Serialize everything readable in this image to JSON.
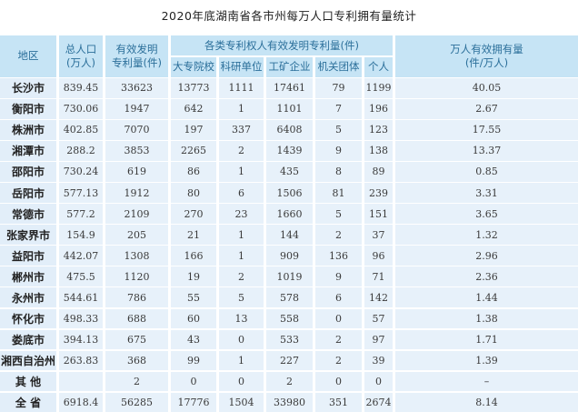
{
  "title": "2020年底湖南省各市州每万人口专利拥有量统计",
  "headers": {
    "region": "地区",
    "population": [
      "总人口",
      "(万人)"
    ],
    "valid_patents": [
      "有效发明",
      "专利量(件)"
    ],
    "group": "各类专利权人有效发明专利量(件)",
    "sub": [
      "大专院校",
      "科研单位",
      "工矿企业",
      "机关团体",
      "个人"
    ],
    "per_10k": [
      "万人有效拥有量",
      "(件/万人)"
    ]
  },
  "rows": [
    [
      "长沙市",
      "839.45",
      "33623",
      "13773",
      "1111",
      "17461",
      "79",
      "1199",
      "40.05"
    ],
    [
      "衡阳市",
      "730.06",
      "1947",
      "642",
      "1",
      "1101",
      "7",
      "196",
      "2.67"
    ],
    [
      "株洲市",
      "402.85",
      "7070",
      "197",
      "337",
      "6408",
      "5",
      "123",
      "17.55"
    ],
    [
      "湘潭市",
      "288.2",
      "3853",
      "2265",
      "2",
      "1439",
      "9",
      "138",
      "13.37"
    ],
    [
      "邵阳市",
      "730.24",
      "619",
      "86",
      "1",
      "435",
      "8",
      "89",
      "0.85"
    ],
    [
      "岳阳市",
      "577.13",
      "1912",
      "80",
      "6",
      "1506",
      "81",
      "239",
      "3.31"
    ],
    [
      "常德市",
      "577.2",
      "2109",
      "270",
      "23",
      "1660",
      "5",
      "151",
      "3.65"
    ],
    [
      "张家界市",
      "154.9",
      "205",
      "21",
      "1",
      "144",
      "2",
      "37",
      "1.32"
    ],
    [
      "益阳市",
      "442.07",
      "1308",
      "166",
      "1",
      "909",
      "136",
      "96",
      "2.96"
    ],
    [
      "郴州市",
      "475.5",
      "1120",
      "19",
      "2",
      "1019",
      "9",
      "71",
      "2.36"
    ],
    [
      "永州市",
      "544.61",
      "786",
      "55",
      "5",
      "578",
      "6",
      "142",
      "1.44"
    ],
    [
      "怀化市",
      "498.33",
      "688",
      "60",
      "13",
      "558",
      "0",
      "57",
      "1.38"
    ],
    [
      "娄底市",
      "394.13",
      "675",
      "43",
      "0",
      "533",
      "2",
      "97",
      "1.71"
    ],
    [
      "湘西自治州",
      "263.83",
      "368",
      "99",
      "1",
      "227",
      "2",
      "39",
      "1.39"
    ],
    [
      "其 他",
      "",
      "2",
      "0",
      "0",
      "2",
      "0",
      "0",
      "–"
    ],
    [
      "全 省",
      "6918.4",
      "56285",
      "17776",
      "1504",
      "33980",
      "351",
      "2674",
      "8.14"
    ]
  ]
}
